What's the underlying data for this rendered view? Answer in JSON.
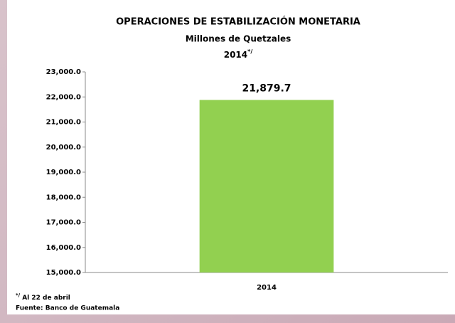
{
  "chart_data": {
    "type": "bar",
    "title": "OPERACIONES DE ESTABILIZACIÓN MONETARIA",
    "subtitle": "Millones de Quetzales",
    "period": "2014",
    "period_mark": "*/",
    "categories": [
      "2014"
    ],
    "values": [
      21879.7
    ],
    "value_labels": [
      "21,879.7"
    ],
    "color": "#92d050",
    "ylim": [
      15000,
      23000
    ],
    "yticks": [
      {
        "value": 15000,
        "label": "15,000.0"
      },
      {
        "value": 16000,
        "label": "16,000.0"
      },
      {
        "value": 17000,
        "label": "17,000.0"
      },
      {
        "value": 18000,
        "label": "18,000.0"
      },
      {
        "value": 19000,
        "label": "19,000.0"
      },
      {
        "value": 20000,
        "label": "20,000.0"
      },
      {
        "value": 21000,
        "label": "21,000.0"
      },
      {
        "value": 22000,
        "label": "22,000.0"
      },
      {
        "value": 23000,
        "label": "23,000.0"
      }
    ],
    "grid": false,
    "note_mark": "*/",
    "note": "Al 22 de abril",
    "source": "Fuente: Banco de Guatemala"
  }
}
